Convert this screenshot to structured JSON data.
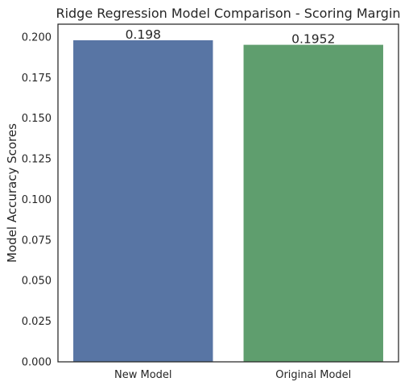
{
  "chart_data": {
    "type": "bar",
    "title": "Ridge Regression Model Comparison - Scoring Margin",
    "xlabel": "",
    "ylabel": "Model Accuracy Scores",
    "categories": [
      "New Model",
      "Original Model"
    ],
    "values": [
      0.198,
      0.1952
    ],
    "data_labels": [
      "0.198",
      "0.1952"
    ],
    "colors": [
      "#5875a4",
      "#5f9e6e"
    ],
    "ylim": [
      0,
      0.2079
    ],
    "yticks": [
      0.0,
      0.025,
      0.05,
      0.075,
      0.1,
      0.125,
      0.15,
      0.175,
      0.2
    ],
    "ytick_labels": [
      "0.000",
      "0.025",
      "0.050",
      "0.075",
      "0.100",
      "0.125",
      "0.150",
      "0.175",
      "0.200"
    ],
    "grid": false,
    "legend": "none"
  }
}
